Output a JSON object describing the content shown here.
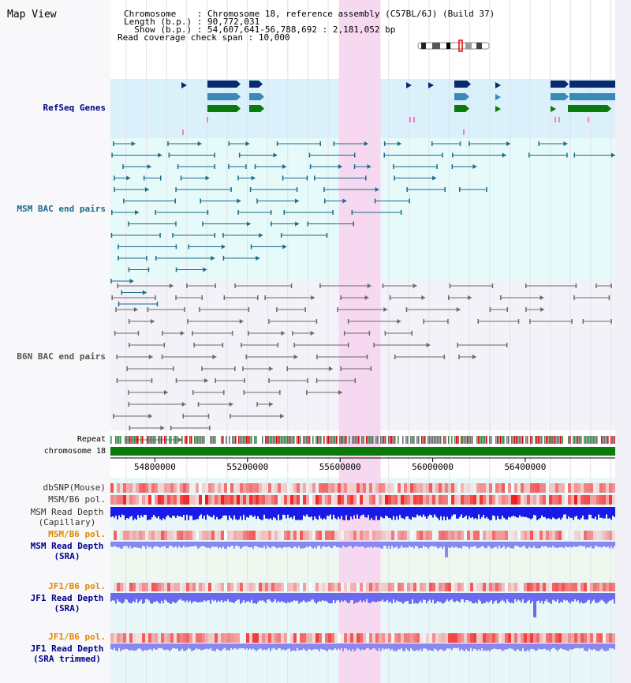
{
  "view_title": "Map View",
  "header": {
    "rows": [
      {
        "label": "Chromosome    ",
        "value": "Chromosome 18, reference assembly (C57BL/6J) (Build 37)"
      },
      {
        "label": "Length (b.p.) ",
        "value": "90,772,031"
      },
      {
        "label": "  Show (b.p.) ",
        "value": "54,607,641-56,788,692 : 2,181,052 bp"
      },
      {
        "label": "Read coverage check span ",
        "value": "10,000"
      }
    ]
  },
  "tracks": {
    "refseq": "RefSeq Genes",
    "msm_bac": "MSM BAC end pairs",
    "b6n_bac": "B6N BAC end pairs",
    "repeat": "Repeat",
    "chromosome": "chromosome 18",
    "dbsnp": "dbSNP(Mouse)",
    "msm_b6_pol": "MSM/B6 pol.",
    "msm_read_depth_cap_1": "MSM Read Depth",
    "msm_read_depth_cap_2": "(Capillary)",
    "msm_b6_pol_sra": "MSM/B6 pol.",
    "msm_read_depth_sra_1": "MSM Read Depth",
    "msm_read_depth_sra_2": "(SRA)",
    "jf1_b6_pol_1": "JF1/B6 pol.",
    "jf1_read_depth_sra_1": "JF1 Read Depth",
    "jf1_read_depth_sra_2": "(SRA)",
    "jf1_b6_pol_2": "JF1/B6 pol.",
    "jf1_read_depth_trim_1": "JF1 Read Depth",
    "jf1_read_depth_trim_2": "(SRA trimmed)"
  },
  "axis": {
    "ticks": [
      "54800000",
      "55200000",
      "55600000",
      "56000000",
      "56400000"
    ],
    "start": 54607641,
    "end": 56788692
  },
  "highlight": {
    "start": 55595000,
    "end": 55775000
  },
  "colors": {
    "refseq_bg": "#daf0fa",
    "msm_bg": "#e6fafa",
    "b6n_bg": "#f2f2f8",
    "highlight": "#f8d8f0",
    "chromosome_bar": "#0a7a0a",
    "gene_dark": "#0a2a6e",
    "gene_mid": "#3a8ab8",
    "gene_green": "#0a7a0a",
    "msm_pair": "#1a6a8a",
    "b6n_pair": "#6a6a6a",
    "depth_dark": "#2a2af0",
    "depth_light": "#8888f0",
    "label_blue": "#00008b",
    "label_orange": "#e08800"
  }
}
